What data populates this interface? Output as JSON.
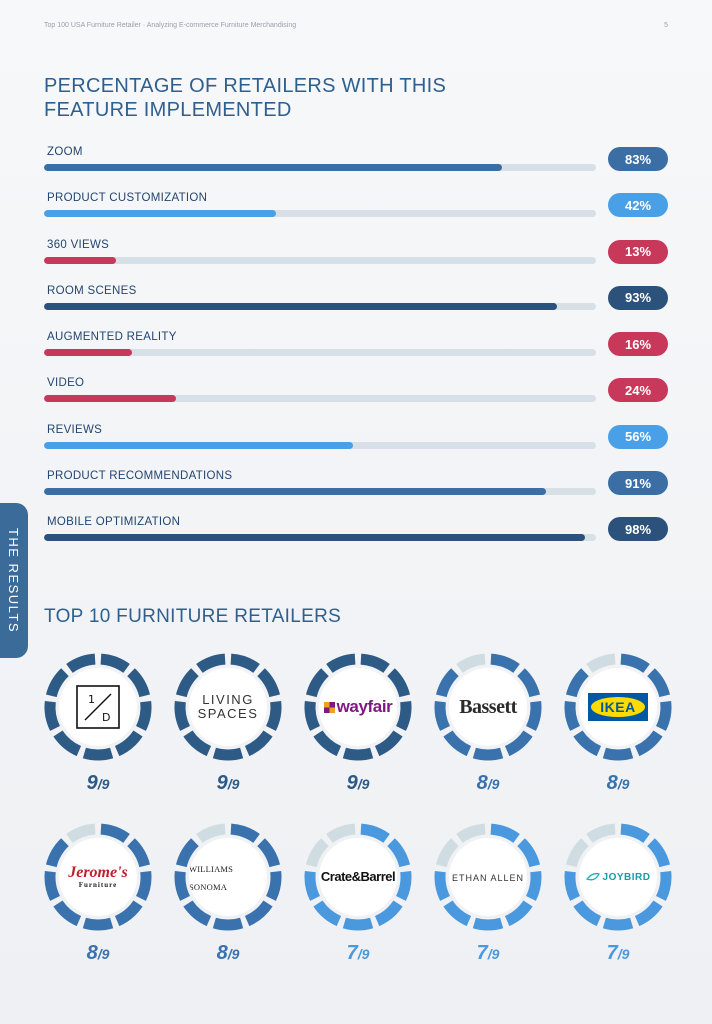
{
  "header": {
    "left": "Top 100 USA Furniture Retailer · Analyzing E-commerce Furniture Merchandising",
    "page_number": "5"
  },
  "side_tab": "THE RESULTS",
  "title": "PERCENTAGE OF RETAILERS WITH THIS FEATURE IMPLEMENTED",
  "colors": {
    "navy": "#2e5a86",
    "mid_blue": "#3a6fa8",
    "light_blue": "#4aa0e6",
    "red": "#c8385a",
    "track": "#d7e0e6",
    "ring_empty": "#cfdde2"
  },
  "features": [
    {
      "label": "ZOOM",
      "percent": 83,
      "text": "83%",
      "color": "#3b6ea5"
    },
    {
      "label": "PRODUCT CUSTOMIZATION",
      "percent": 42,
      "text": "42%",
      "color": "#4aa0e6"
    },
    {
      "label": "360 VIEWS",
      "percent": 13,
      "text": "13%",
      "color": "#c8385a"
    },
    {
      "label": "ROOM SCENES",
      "percent": 93,
      "text": "93%",
      "color": "#2c527c"
    },
    {
      "label": "AUGMENTED REALITY",
      "percent": 16,
      "text": "16%",
      "color": "#c8385a"
    },
    {
      "label": "VIDEO",
      "percent": 24,
      "text": "24%",
      "color": "#c8385a"
    },
    {
      "label": "REVIEWS",
      "percent": 56,
      "text": "56%",
      "color": "#4aa0e6"
    },
    {
      "label": "PRODUCT RECOMMENDATIONS",
      "percent": 91,
      "text": "91%",
      "color": "#3b6ea5"
    },
    {
      "label": "MOBILE OPTIMIZATION",
      "percent": 98,
      "text": "98%",
      "color": "#2c527c"
    }
  ],
  "top10_title": "TOP 10 FURNITURE RETAILERS",
  "retailers": [
    {
      "name": "1/D",
      "logo": "one-d-logo",
      "score": 9,
      "max": 9,
      "score_text": "9",
      "max_text": "/9",
      "ring_color": "#2e5a86"
    },
    {
      "name": "LIVING SPACES",
      "logo": "living-spaces-logo",
      "score": 9,
      "max": 9,
      "score_text": "9",
      "max_text": "/9",
      "ring_color": "#2e5a86"
    },
    {
      "name": "wayfair",
      "logo": "wayfair-logo",
      "score": 9,
      "max": 9,
      "score_text": "9",
      "max_text": "/9",
      "ring_color": "#2e5a86"
    },
    {
      "name": "Bassett",
      "logo": "bassett-logo",
      "score": 8,
      "max": 9,
      "score_text": "8",
      "max_text": "/9",
      "ring_color": "#3a72ad"
    },
    {
      "name": "IKEA",
      "logo": "ikea-logo",
      "score": 8,
      "max": 9,
      "score_text": "8",
      "max_text": "/9",
      "ring_color": "#3a72ad"
    },
    {
      "name": "Jerome's Furniture",
      "logo": "jeromes-logo",
      "score": 8,
      "max": 9,
      "score_text": "8",
      "max_text": "/9",
      "ring_color": "#3a72ad"
    },
    {
      "name": "WILLIAMS SONOMA",
      "logo": "williams-sonoma-logo",
      "score": 8,
      "max": 9,
      "score_text": "8",
      "max_text": "/9",
      "ring_color": "#3a72ad"
    },
    {
      "name": "Crate&Barrel",
      "logo": "crate-barrel-logo",
      "score": 7,
      "max": 9,
      "score_text": "7",
      "max_text": "/9",
      "ring_color": "#4a98de"
    },
    {
      "name": "ETHAN ALLEN",
      "logo": "ethan-allen-logo",
      "score": 7,
      "max": 9,
      "score_text": "7",
      "max_text": "/9",
      "ring_color": "#4a98de"
    },
    {
      "name": "JOYBIRD",
      "logo": "joybird-logo",
      "score": 7,
      "max": 9,
      "score_text": "7",
      "max_text": "/9",
      "ring_color": "#4a98de"
    }
  ]
}
